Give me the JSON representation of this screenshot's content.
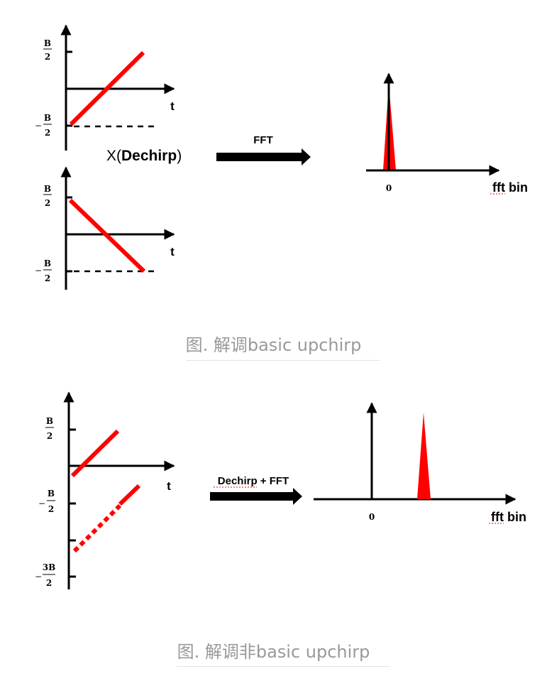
{
  "colors": {
    "chirp": "#ff0000",
    "axis": "#000000",
    "caption": "#999999"
  },
  "figure1": {
    "upchirp_axes": {
      "top_label_num": "B",
      "top_label_den": "2",
      "bottom_label_num": "B",
      "bottom_label_den": "2",
      "bottom_label_sign": "−",
      "time_label": "t"
    },
    "downchirp_axes": {
      "top_label_num": "B",
      "top_label_den": "2",
      "bottom_label_num": "B",
      "bottom_label_den": "2",
      "bottom_label_sign": "−",
      "time_label": "t"
    },
    "multiply_label": {
      "prefix": "X(",
      "bold": "Dechirp",
      "suffix": ")"
    },
    "arrow_label": "FFT",
    "spectrum": {
      "zero_label": "0",
      "axis_label": "fft bin"
    },
    "caption": "图. 解调basic upchirp"
  },
  "figure2": {
    "axes": {
      "top_label_num": "B",
      "top_label_den": "2",
      "mid_label_num": "B",
      "mid_label_den": "2",
      "mid_label_sign": "−",
      "low_label_num": "3B",
      "low_label_den": "2",
      "low_label_sign": "−",
      "time_label": "t"
    },
    "arrow_label": "Dechirp + FFT",
    "spectrum": {
      "zero_label": "0",
      "axis_label": "fft bin"
    },
    "caption": "图. 解调非basic upchirp"
  }
}
